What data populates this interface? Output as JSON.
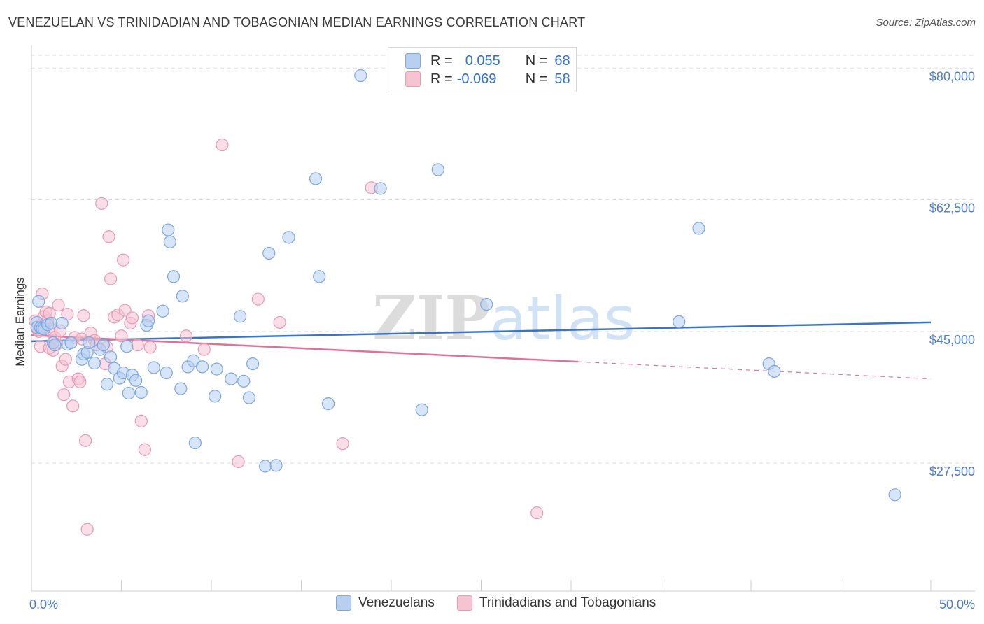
{
  "title": "VENEZUELAN VS TRINIDADIAN AND TOBAGONIAN MEDIAN EARNINGS CORRELATION CHART",
  "source": "Source: ZipAtlas.com",
  "watermark": "ZIPatlas",
  "legend": {
    "rows": [
      {
        "r_label": "R =",
        "r_value": "0.055",
        "n_label": "N =",
        "n_value": "68"
      },
      {
        "r_label": "R =",
        "r_value": "-0.069",
        "n_label": "N =",
        "n_value": "58"
      }
    ]
  },
  "bottom_legend": [
    "Venezuelans",
    "Trinidadians and Tobagonians"
  ],
  "colors": {
    "blue_fill": "#b7d0f2",
    "blue_stroke": "#7ea6df",
    "blue_line": "#3a74c9",
    "pink_fill": "#f6c3d3",
    "pink_stroke": "#e89ab3",
    "pink_line": "#e07199",
    "tick": "#4a7cc9",
    "grid": "#dddddd"
  },
  "chart_data": {
    "type": "scatter",
    "title": "VENEZUELAN VS TRINIDADIAN AND TOBAGONIAN MEDIAN EARNINGS CORRELATION CHART",
    "xlabel": "",
    "ylabel": "Median Earnings",
    "xlim": [
      0,
      50
    ],
    "ylim": [
      10500,
      83000
    ],
    "x_tick_labels": [
      "0.0%",
      "50.0%"
    ],
    "y_ticks": [
      27500,
      45000,
      62500,
      80000
    ],
    "y_tick_labels": [
      "$27,500",
      "$45,000",
      "$62,500",
      "$80,000"
    ],
    "grid": true,
    "legend_position": "top-center",
    "series": [
      {
        "name": "Venezuelans",
        "r": 0.055,
        "n": 68,
        "trend": {
          "x": [
            0,
            50
          ],
          "y": [
            43700,
            46200
          ],
          "solid_until": 50
        },
        "points": [
          [
            0.3,
            46200
          ],
          [
            0.3,
            45500
          ],
          [
            0.4,
            49000
          ],
          [
            0.5,
            45500
          ],
          [
            0.6,
            45400
          ],
          [
            0.7,
            45300
          ],
          [
            0.9,
            45900
          ],
          [
            1.1,
            46100
          ],
          [
            1.2,
            43500
          ],
          [
            1.3,
            43200
          ],
          [
            1.7,
            46100
          ],
          [
            2.0,
            43300
          ],
          [
            2.2,
            43500
          ],
          [
            2.8,
            41300
          ],
          [
            2.9,
            42000
          ],
          [
            3.1,
            42200
          ],
          [
            3.2,
            43500
          ],
          [
            3.5,
            40800
          ],
          [
            3.8,
            42600
          ],
          [
            4.0,
            43200
          ],
          [
            4.2,
            38000
          ],
          [
            4.4,
            41600
          ],
          [
            4.6,
            40100
          ],
          [
            4.9,
            38800
          ],
          [
            5.1,
            39500
          ],
          [
            5.3,
            43000
          ],
          [
            5.4,
            36800
          ],
          [
            5.6,
            39200
          ],
          [
            5.8,
            38500
          ],
          [
            6.1,
            36900
          ],
          [
            6.4,
            45800
          ],
          [
            6.5,
            46400
          ],
          [
            6.8,
            40200
          ],
          [
            7.3,
            47700
          ],
          [
            7.5,
            39500
          ],
          [
            7.6,
            58500
          ],
          [
            7.7,
            56900
          ],
          [
            7.9,
            52300
          ],
          [
            8.3,
            37400
          ],
          [
            8.4,
            49700
          ],
          [
            8.7,
            40300
          ],
          [
            9.0,
            41100
          ],
          [
            9.1,
            30200
          ],
          [
            9.5,
            40300
          ],
          [
            10.2,
            36400
          ],
          [
            10.3,
            40000
          ],
          [
            11.1,
            38700
          ],
          [
            11.6,
            47000
          ],
          [
            11.8,
            38400
          ],
          [
            12.1,
            36200
          ],
          [
            12.3,
            40700
          ],
          [
            13.0,
            27100
          ],
          [
            13.2,
            55400
          ],
          [
            13.6,
            27200
          ],
          [
            14.3,
            57500
          ],
          [
            15.8,
            65300
          ],
          [
            16.0,
            52300
          ],
          [
            16.5,
            35400
          ],
          [
            18.3,
            79000
          ],
          [
            19.4,
            64000
          ],
          [
            21.7,
            34600
          ],
          [
            22.6,
            66500
          ],
          [
            25.3,
            48600
          ],
          [
            36.0,
            46300
          ],
          [
            37.1,
            58700
          ],
          [
            41.0,
            40700
          ],
          [
            41.3,
            39700
          ],
          [
            48.0,
            23300
          ]
        ]
      },
      {
        "name": "Trinidadians and Tobagonians",
        "r": -0.069,
        "n": 58,
        "trend": {
          "x": [
            0,
            50
          ],
          "y": [
            44500,
            38700
          ],
          "solid_until": 30.4
        },
        "points": [
          [
            0.2,
            46400
          ],
          [
            0.3,
            45600
          ],
          [
            0.4,
            45000
          ],
          [
            0.5,
            43000
          ],
          [
            0.6,
            50000
          ],
          [
            0.7,
            47000
          ],
          [
            0.8,
            47600
          ],
          [
            0.9,
            46400
          ],
          [
            1.0,
            47400
          ],
          [
            1.1,
            45300
          ],
          [
            1.2,
            42500
          ],
          [
            1.3,
            44200
          ],
          [
            1.4,
            43300
          ],
          [
            1.5,
            48500
          ],
          [
            1.6,
            45100
          ],
          [
            1.7,
            40400
          ],
          [
            1.8,
            36600
          ],
          [
            1.9,
            41300
          ],
          [
            2.0,
            47300
          ],
          [
            2.1,
            38300
          ],
          [
            2.3,
            35100
          ],
          [
            2.4,
            44200
          ],
          [
            2.6,
            38700
          ],
          [
            2.7,
            38300
          ],
          [
            2.8,
            44000
          ],
          [
            2.9,
            47100
          ],
          [
            3.0,
            30500
          ],
          [
            3.1,
            18700
          ],
          [
            3.3,
            44800
          ],
          [
            3.5,
            43800
          ],
          [
            3.6,
            43200
          ],
          [
            3.9,
            62000
          ],
          [
            4.1,
            40700
          ],
          [
            4.2,
            42900
          ],
          [
            4.3,
            57600
          ],
          [
            4.4,
            52000
          ],
          [
            4.6,
            46900
          ],
          [
            4.8,
            47200
          ],
          [
            5.0,
            44400
          ],
          [
            5.1,
            54500
          ],
          [
            5.2,
            47800
          ],
          [
            5.5,
            46100
          ],
          [
            5.6,
            46800
          ],
          [
            5.9,
            43200
          ],
          [
            6.1,
            33100
          ],
          [
            6.3,
            29300
          ],
          [
            6.5,
            47100
          ],
          [
            6.6,
            42900
          ],
          [
            8.6,
            44400
          ],
          [
            9.6,
            42600
          ],
          [
            10.6,
            69800
          ],
          [
            11.5,
            27700
          ],
          [
            12.6,
            49300
          ],
          [
            13.8,
            46200
          ],
          [
            17.3,
            30100
          ],
          [
            18.9,
            64100
          ],
          [
            28.1,
            20900
          ],
          [
            1.0,
            42800
          ]
        ]
      }
    ]
  }
}
